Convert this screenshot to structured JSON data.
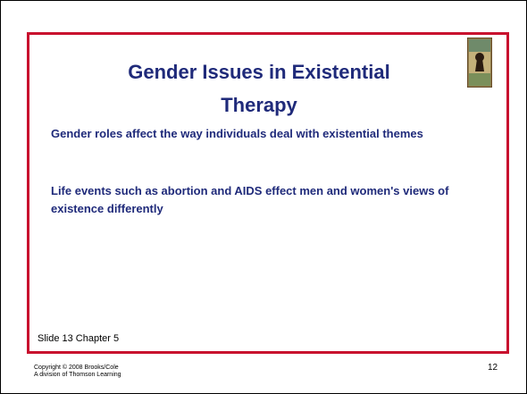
{
  "slide": {
    "title": "Gender Issues in Existential Therapy",
    "bullets": [
      "Gender roles affect the way individuals deal with existential themes",
      "Life events such as abortion and AIDS effect men and women's views of existence differently"
    ],
    "slide_label": "Slide 13 Chapter 5",
    "copyright": [
      "Copyright © 2008 Brooks/Cole",
      "A division of Thomson Learning"
    ],
    "page_number": "12"
  }
}
